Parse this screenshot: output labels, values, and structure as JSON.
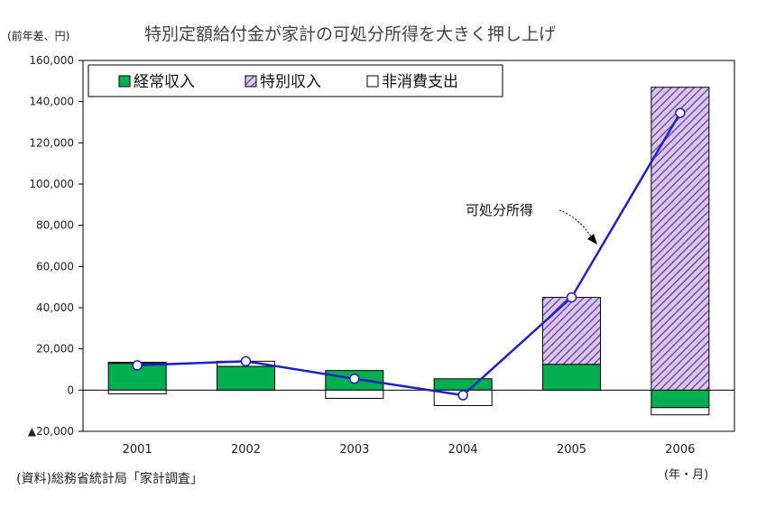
{
  "unit_label": "(前年差、円)",
  "source_note": "(資料)総務省統計局「家計調査」",
  "x_unit_label": "(年・月)",
  "colors": {
    "earned": "#00b050",
    "special_fill": "#d9c8ec",
    "special_hatch": "#7a4da8",
    "nonconsumption": "#ffffff",
    "line": "#1f1fcc",
    "marker_fill": "#ffffff",
    "axis": "#000000",
    "grid": "#bbbbbb"
  },
  "chart_data": {
    "type": "bar",
    "stacked": true,
    "title": "特別定額給付金が家計の可処分所得を大きく押し上げ",
    "xlabel": "",
    "ylabel": "(前年差、円)",
    "ylim": [
      -20000,
      160000
    ],
    "yticks": [
      -20000,
      0,
      20000,
      40000,
      60000,
      80000,
      100000,
      120000,
      140000,
      160000
    ],
    "ytick_labels": [
      "▲20,000",
      "0",
      "20,000",
      "40,000",
      "60,000",
      "80,000",
      "100,000",
      "120,000",
      "140,000",
      "160,000"
    ],
    "categories": [
      "2001",
      "2002",
      "2003",
      "2004",
      "2005",
      "2006"
    ],
    "legend_position": "top-left",
    "grid": false,
    "series": [
      {
        "name": "経常収入",
        "kind": "bar",
        "values": [
          13000,
          11500,
          9500,
          5500,
          12500,
          -8500
        ]
      },
      {
        "name": "特別収入",
        "kind": "bar",
        "values": [
          500,
          0,
          0,
          0,
          32500,
          147000
        ]
      },
      {
        "name": "非消費支出",
        "kind": "bar",
        "values": [
          -1800,
          2500,
          -4000,
          -7500,
          0,
          -3500
        ]
      },
      {
        "name": "",
        "kind": "line",
        "values": [
          12000,
          14000,
          5500,
          -2500,
          45000,
          134500
        ]
      }
    ],
    "annotations": [
      {
        "text": "可処分所得",
        "points_to_series": 3
      }
    ]
  }
}
